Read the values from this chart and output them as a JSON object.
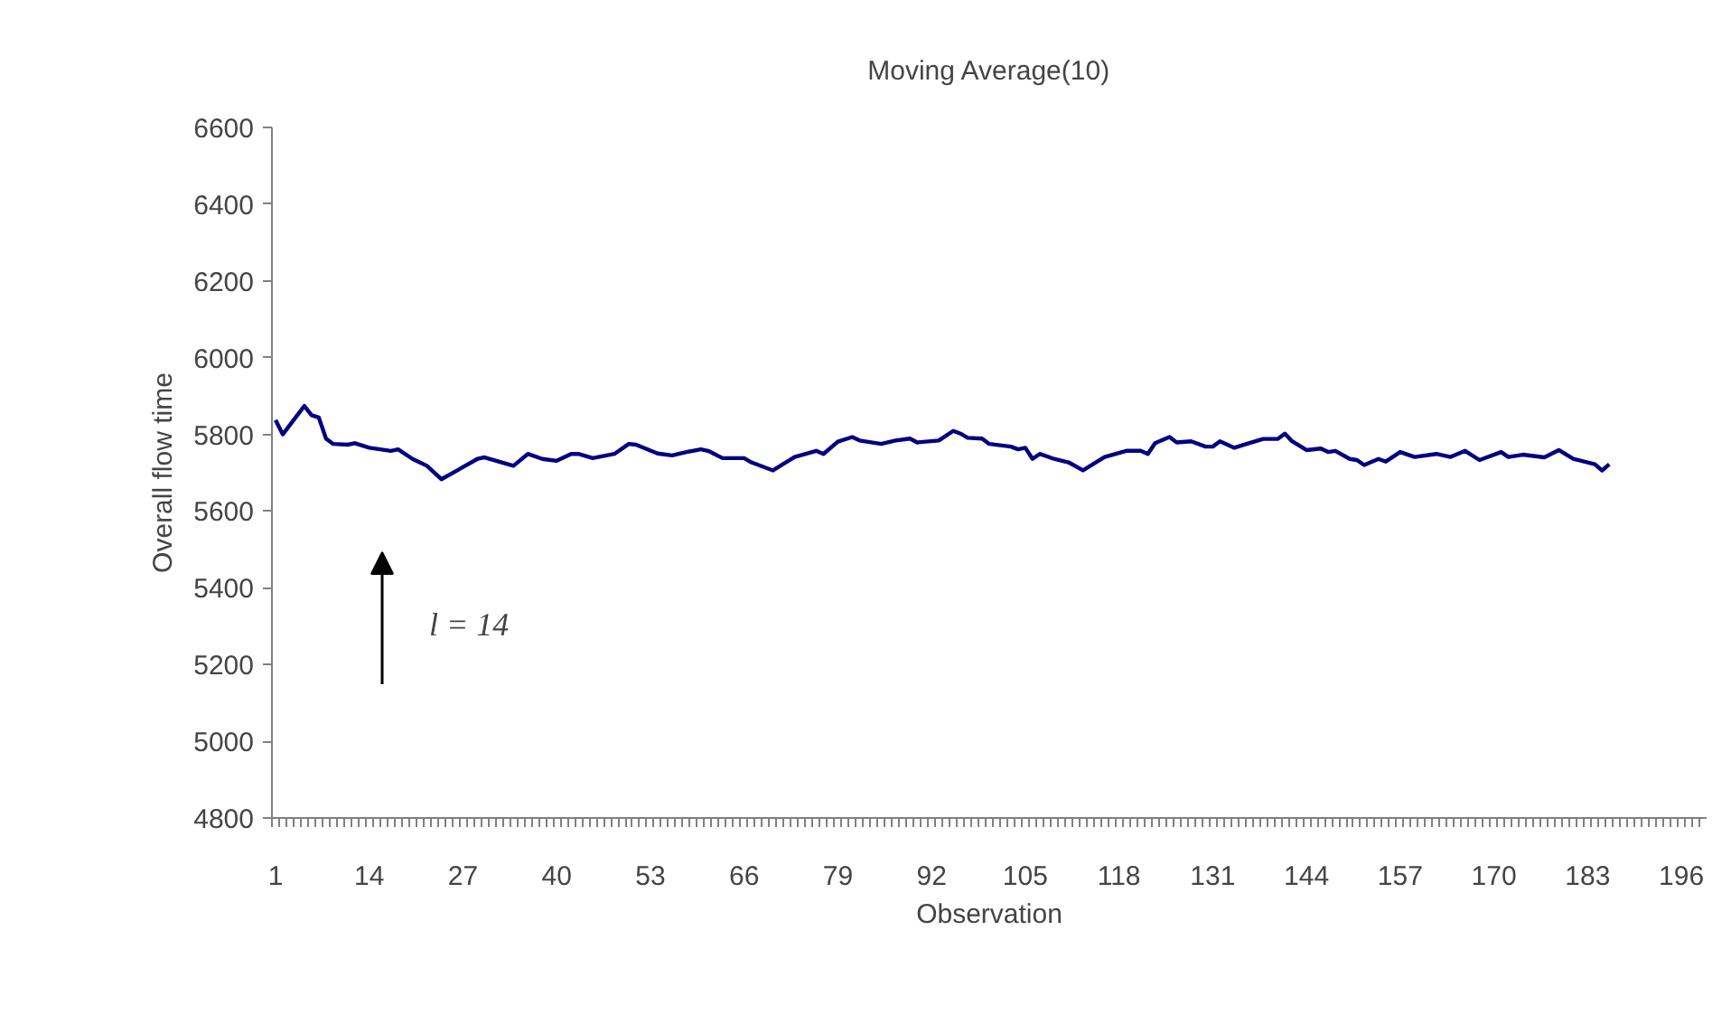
{
  "chart_data": {
    "type": "line",
    "title": "Moving Average(10)",
    "xlabel": "Observation",
    "ylabel": "Overall flow time",
    "series": [
      {
        "color": "#000080",
        "x": [
          1,
          2,
          5,
          6,
          7,
          8,
          9,
          11,
          12,
          14,
          17,
          18,
          20,
          22,
          24,
          26,
          29,
          30,
          34,
          36,
          38,
          40,
          42,
          43,
          45,
          48,
          50,
          51,
          54,
          56,
          58,
          60,
          61,
          63,
          65,
          66,
          67,
          70,
          73,
          76,
          77,
          79,
          81,
          82,
          85,
          87,
          89,
          90,
          93,
          95,
          96,
          97,
          99,
          100,
          103,
          104,
          105,
          106,
          107,
          109,
          111,
          113,
          116,
          119,
          121,
          122,
          123,
          125,
          126,
          128,
          130,
          131,
          132,
          134,
          136,
          138,
          140,
          141,
          142,
          144,
          146,
          147,
          148,
          150,
          151,
          152,
          154,
          155,
          157,
          159,
          162,
          164,
          166,
          168,
          171,
          172,
          174,
          177,
          179,
          181,
          184,
          185,
          186
        ],
        "values": [
          5837,
          5800,
          5874,
          5850,
          5844,
          5789,
          5775,
          5773,
          5777,
          5765,
          5757,
          5761,
          5736,
          5718,
          5683,
          5704,
          5736,
          5740,
          5718,
          5749,
          5736,
          5731,
          5749,
          5749,
          5738,
          5749,
          5775,
          5773,
          5750,
          5745,
          5754,
          5761,
          5757,
          5738,
          5738,
          5738,
          5727,
          5706,
          5741,
          5757,
          5749,
          5781,
          5793,
          5784,
          5775,
          5784,
          5789,
          5779,
          5784,
          5809,
          5802,
          5791,
          5789,
          5775,
          5768,
          5761,
          5765,
          5736,
          5749,
          5736,
          5727,
          5706,
          5741,
          5757,
          5757,
          5749,
          5777,
          5793,
          5779,
          5782,
          5768,
          5768,
          5782,
          5765,
          5777,
          5788,
          5788,
          5802,
          5782,
          5759,
          5763,
          5754,
          5757,
          5736,
          5733,
          5720,
          5736,
          5729,
          5754,
          5741,
          5749,
          5741,
          5757,
          5733,
          5754,
          5741,
          5747,
          5740,
          5759,
          5736,
          5722,
          5706,
          5722
        ]
      }
    ],
    "xlim": [
      0.5,
      199.5
    ],
    "xticks": [
      1,
      14,
      27,
      40,
      53,
      66,
      79,
      92,
      105,
      118,
      131,
      144,
      157,
      170,
      183,
      196
    ],
    "ylim": [
      4800,
      6600
    ],
    "yticks": [
      4800,
      5000,
      5200,
      5400,
      5600,
      5800,
      6000,
      6200,
      6400,
      6600
    ],
    "grid": false,
    "marker": "none",
    "line_style": "solid",
    "annotations": [
      "l = 14"
    ]
  }
}
